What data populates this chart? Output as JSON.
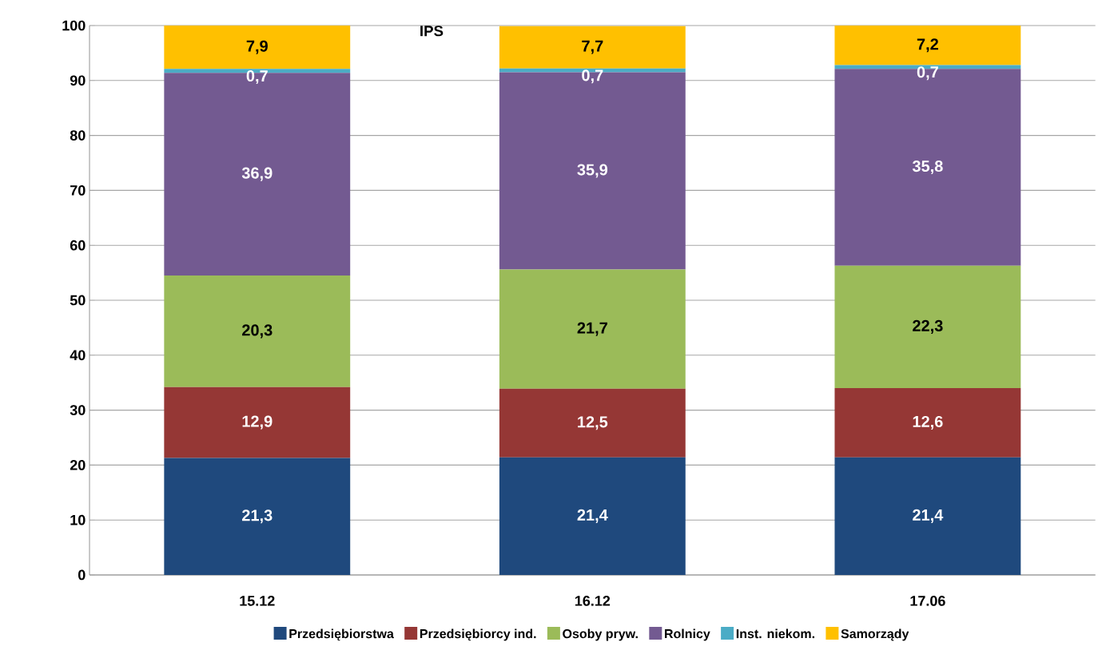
{
  "chart_data": {
    "type": "bar",
    "stacked": true,
    "title": "IPS",
    "categories": [
      "15.12",
      "16.12",
      "17.06"
    ],
    "series": [
      {
        "name": "Przedsiębiorstwa",
        "color": "#1f497d",
        "values": [
          21.3,
          21.4,
          21.4
        ],
        "value_labels": [
          "21,3",
          "21,4",
          "21,4"
        ]
      },
      {
        "name": "Przedsiębiorcy ind.",
        "color": "#953735",
        "values": [
          12.9,
          12.5,
          12.6
        ],
        "value_labels": [
          "12,9",
          "12,5",
          "12,6"
        ]
      },
      {
        "name": "Osoby pryw.",
        "color": "#9bbb59",
        "values": [
          20.3,
          21.7,
          22.3
        ],
        "value_labels": [
          "20,3",
          "21,7",
          "22,3"
        ]
      },
      {
        "name": "Rolnicy",
        "color": "#735a91",
        "values": [
          36.9,
          35.9,
          35.8
        ],
        "value_labels": [
          "36,9",
          "35,9",
          "35,8"
        ]
      },
      {
        "name": "Inst. niekom.",
        "color": "#4bacc6",
        "values": [
          0.7,
          0.7,
          0.7
        ],
        "value_labels": [
          "0,7",
          "0,7",
          "0,7"
        ]
      },
      {
        "name": "Samorządy",
        "color": "#ffc000",
        "values": [
          7.9,
          7.7,
          7.2
        ],
        "value_labels": [
          "7,9",
          "7,7",
          "7,2"
        ]
      }
    ],
    "ylim": [
      0,
      100
    ],
    "yticks": [
      0,
      10,
      20,
      30,
      40,
      50,
      60,
      70,
      80,
      90,
      100
    ],
    "grid": "y",
    "legend": "bottom"
  }
}
